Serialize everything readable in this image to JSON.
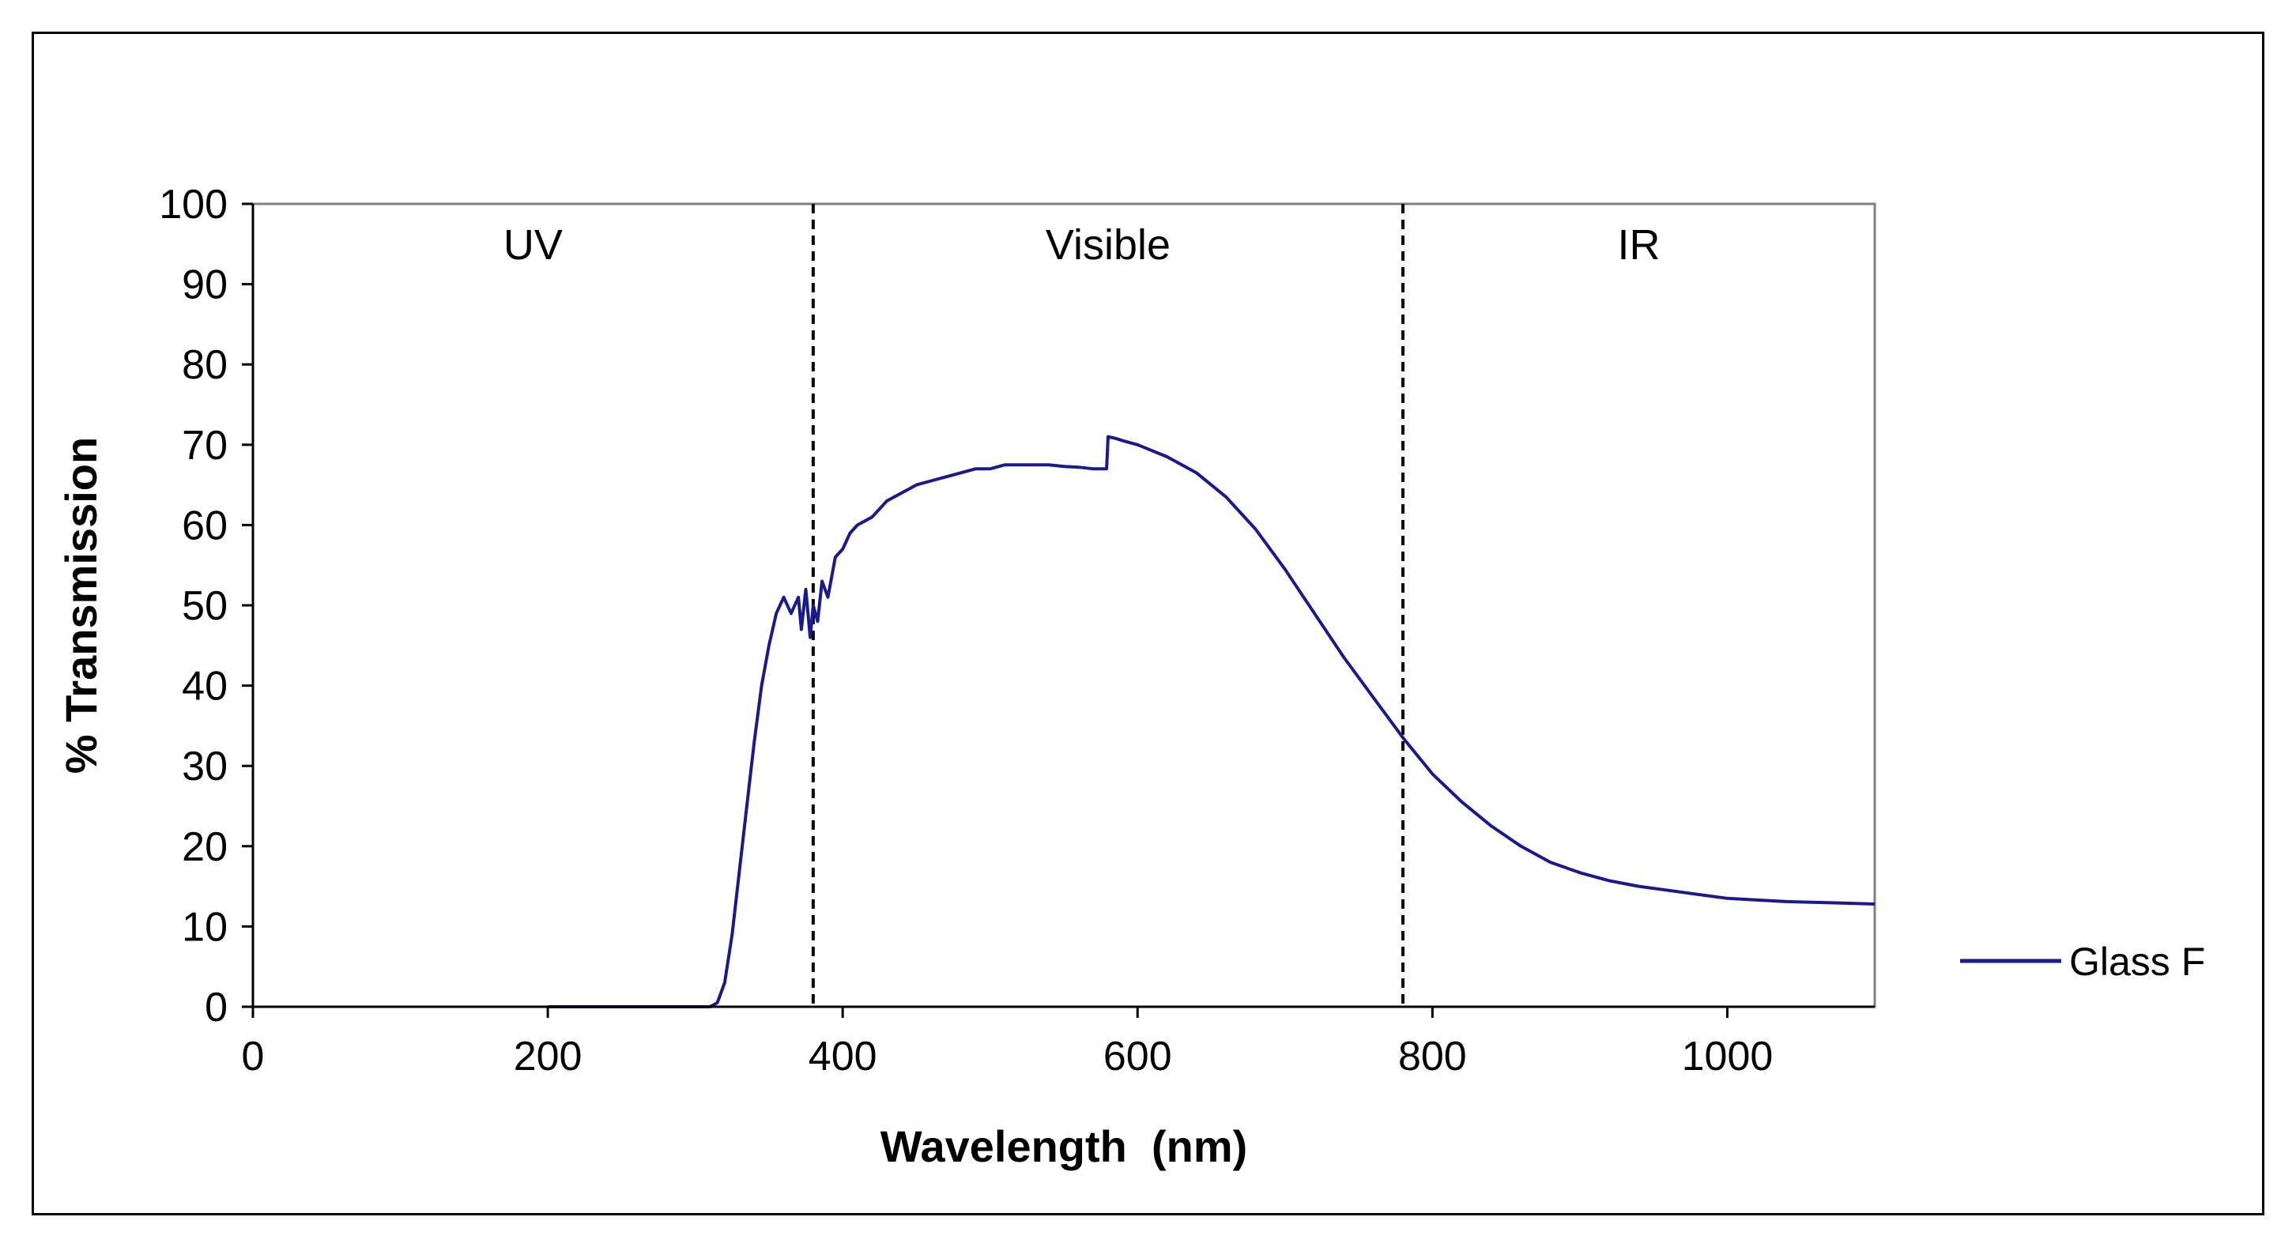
{
  "chart_data": {
    "type": "line",
    "title": "",
    "xlabel": "Wavelength  (nm)",
    "ylabel": "% Transmission",
    "xlim": [
      0,
      1100
    ],
    "ylim": [
      0,
      100
    ],
    "xticks": [
      0,
      200,
      400,
      600,
      800,
      1000
    ],
    "yticks": [
      0,
      10,
      20,
      30,
      40,
      50,
      60,
      70,
      80,
      90,
      100
    ],
    "grid": false,
    "legend_position": "right",
    "region_boundaries": [
      380,
      780
    ],
    "regions": [
      {
        "label": "UV",
        "x": 190
      },
      {
        "label": "Visible",
        "x": 580
      },
      {
        "label": "IR",
        "x": 940
      }
    ],
    "series": [
      {
        "name": "Glass F",
        "color": "#1a1a8c",
        "x": [
          200,
          250,
          300,
          310,
          315,
          320,
          325,
          330,
          335,
          340,
          345,
          350,
          355,
          360,
          365,
          370,
          372,
          375,
          378,
          380,
          383,
          386,
          390,
          395,
          400,
          405,
          410,
          420,
          430,
          440,
          450,
          460,
          470,
          480,
          490,
          500,
          510,
          520,
          530,
          540,
          550,
          560,
          570,
          579,
          580,
          585,
          590,
          600,
          620,
          640,
          660,
          680,
          700,
          720,
          740,
          760,
          780,
          800,
          820,
          840,
          860,
          880,
          900,
          920,
          940,
          960,
          980,
          1000,
          1020,
          1040,
          1060,
          1080,
          1100
        ],
        "y": [
          0,
          0,
          0,
          0,
          0.5,
          3,
          9,
          17,
          25,
          33,
          40,
          45,
          49,
          51,
          49,
          51,
          47,
          52,
          46,
          50,
          48,
          53,
          51,
          56,
          57,
          59,
          60,
          61,
          63,
          64,
          65,
          65.5,
          66,
          66.5,
          67,
          67,
          67.5,
          67.5,
          67.5,
          67.5,
          67.3,
          67.2,
          67,
          67,
          71,
          70.8,
          70.5,
          70,
          68.5,
          66.5,
          63.5,
          59.5,
          54.5,
          49,
          43.5,
          38.5,
          33.5,
          29,
          25.5,
          22.5,
          20,
          18,
          16.7,
          15.7,
          15,
          14.5,
          14,
          13.5,
          13.3,
          13.1,
          13,
          12.9,
          12.8
        ]
      }
    ]
  }
}
